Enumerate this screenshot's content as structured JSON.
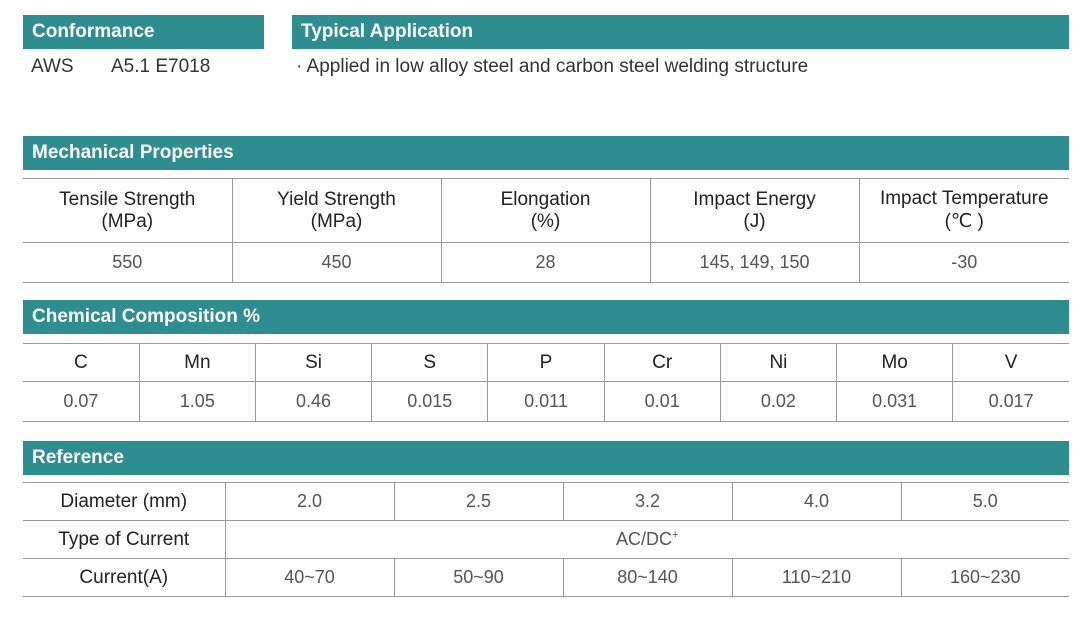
{
  "conformance": {
    "title": "Conformance",
    "standard": "AWS",
    "classification": "A5.1 E7018"
  },
  "application": {
    "title": "Typical Application",
    "text": "· Applied in low alloy steel and carbon steel welding structure"
  },
  "mechanical": {
    "title": "Mechanical Properties",
    "headers": [
      {
        "name": "Tensile Strength",
        "unit": "(MPa)"
      },
      {
        "name": "Yield Strength",
        "unit": "(MPa)"
      },
      {
        "name": "Elongation",
        "unit": "(%)"
      },
      {
        "name": "Impact Energy",
        "unit": "(J)"
      },
      {
        "name": "Impact Temperature",
        "unit": "(℃ )"
      }
    ],
    "values": [
      "550",
      "450",
      "28",
      "145, 149, 150",
      "-30"
    ]
  },
  "chemical": {
    "title": "Chemical Composition %",
    "elements": [
      "C",
      "Mn",
      "Si",
      "S",
      "P",
      "Cr",
      "Ni",
      "Mo",
      "V"
    ],
    "values": [
      "0.07",
      "1.05",
      "0.46",
      "0.015",
      "0.011",
      "0.01",
      "0.02",
      "0.031",
      "0.017"
    ]
  },
  "reference": {
    "title": "Reference",
    "diameter_label": "Diameter (mm)",
    "diameters": [
      "2.0",
      "2.5",
      "3.2",
      "4.0",
      "5.0"
    ],
    "current_type_label": "Type of Current",
    "current_type": "AC/DC",
    "current_type_sup": "+",
    "current_label": "Current(A)",
    "currents": [
      "40~70",
      "50~90",
      "80~140",
      "110~210",
      "160~230"
    ]
  }
}
